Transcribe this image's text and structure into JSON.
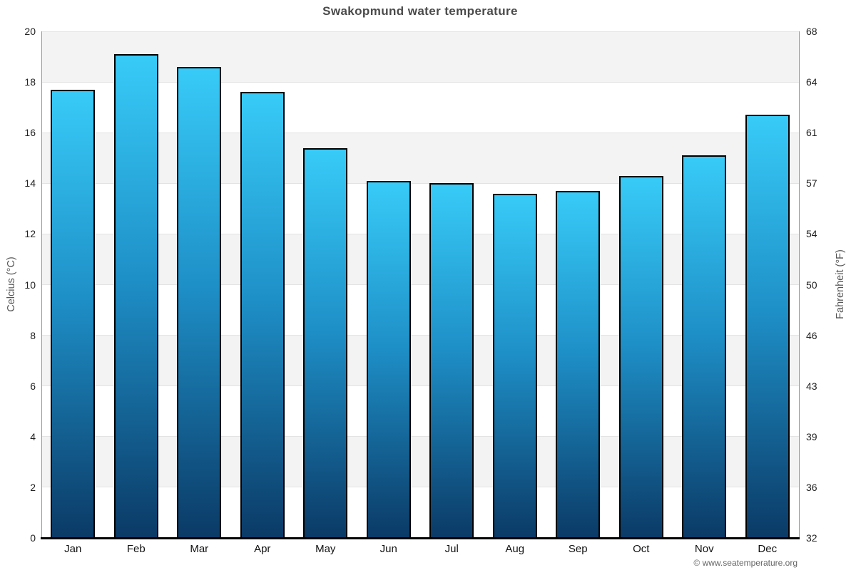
{
  "title": "Swakopmund water temperature",
  "footer": "© www.seatemperature.org",
  "axes": {
    "left_label": "Celcius (°C)",
    "right_label": "Fahrenheit (°F)"
  },
  "colors": {
    "bar_top": "#38cbf8",
    "bar_mid": "#1e90c8",
    "bar_bottom": "#0b3a66",
    "bar_border": "#000000",
    "band_gray": "#f3f3f3",
    "gridline": "#e3e3e3",
    "axis_line": "#999999",
    "baseline": "#000000",
    "title_text": "#4a4a4a",
    "tick_text": "#222222",
    "axis_label_text": "#555555",
    "footer_text": "#666666"
  },
  "chart_data": {
    "type": "bar",
    "title": "Swakopmund water temperature",
    "categories": [
      "Jan",
      "Feb",
      "Mar",
      "Apr",
      "May",
      "Jun",
      "Jul",
      "Aug",
      "Sep",
      "Oct",
      "Nov",
      "Dec"
    ],
    "values": [
      17.7,
      19.1,
      18.6,
      17.6,
      15.4,
      14.1,
      14.0,
      13.6,
      13.7,
      14.3,
      15.1,
      16.7
    ],
    "series_name": "Water temperature (°C)",
    "xlabel": "",
    "ylabel_left": "Celcius (°C)",
    "ylabel_right": "Fahrenheit (°F)",
    "ylim_left": [
      0,
      20
    ],
    "yticks_left": [
      0,
      2,
      4,
      6,
      8,
      10,
      12,
      14,
      16,
      18,
      20
    ],
    "yticks_right_labels": [
      "32",
      "36",
      "39",
      "43",
      "46",
      "50",
      "54",
      "57",
      "61",
      "64",
      "68"
    ],
    "grid": "horizontal-bands",
    "legend": "none"
  }
}
